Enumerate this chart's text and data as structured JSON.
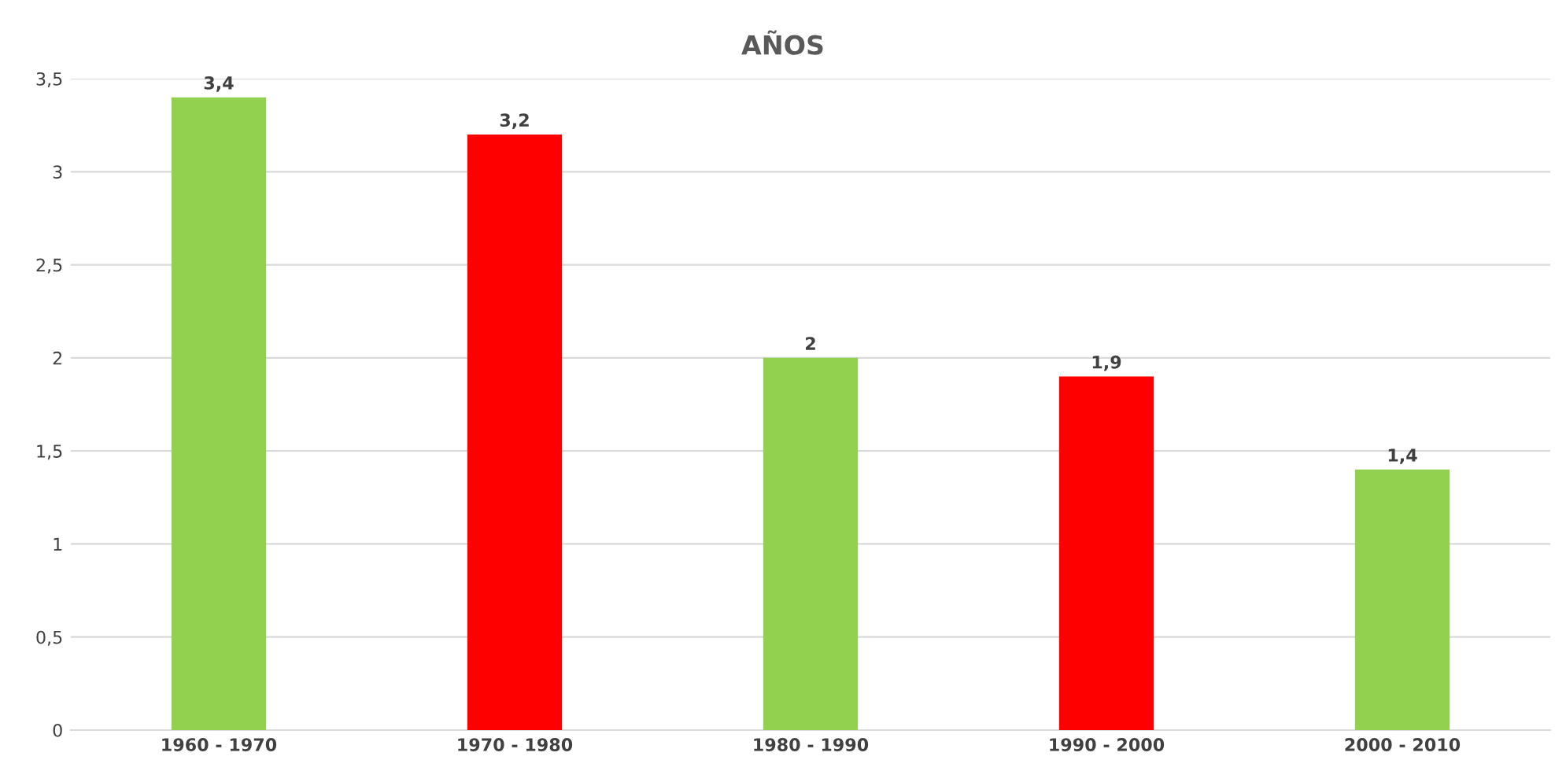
{
  "chart_data": {
    "type": "bar",
    "title": "AÑOS",
    "categories": [
      "1960 - 1970",
      "1970 - 1980",
      "1980 - 1990",
      "1990 - 2000",
      "2000 - 2010"
    ],
    "values": [
      3.4,
      3.2,
      2,
      1.9,
      1.4
    ],
    "colors": [
      "#92d050",
      "#ff0000",
      "#92d050",
      "#ff0000",
      "#92d050"
    ],
    "value_labels": [
      "3,4",
      "3,2",
      "2",
      "1,9",
      "1,4"
    ],
    "ylim": [
      0,
      3.5
    ],
    "yticks": [
      0,
      {
        "value": 0.5,
        "label": "0,5"
      },
      1,
      {
        "value": 1.5,
        "label": "1,5"
      },
      2,
      {
        "value": 2.5,
        "label": "2,5"
      },
      3,
      {
        "value": 3.5,
        "label": "3,5"
      }
    ],
    "grid": "y"
  }
}
